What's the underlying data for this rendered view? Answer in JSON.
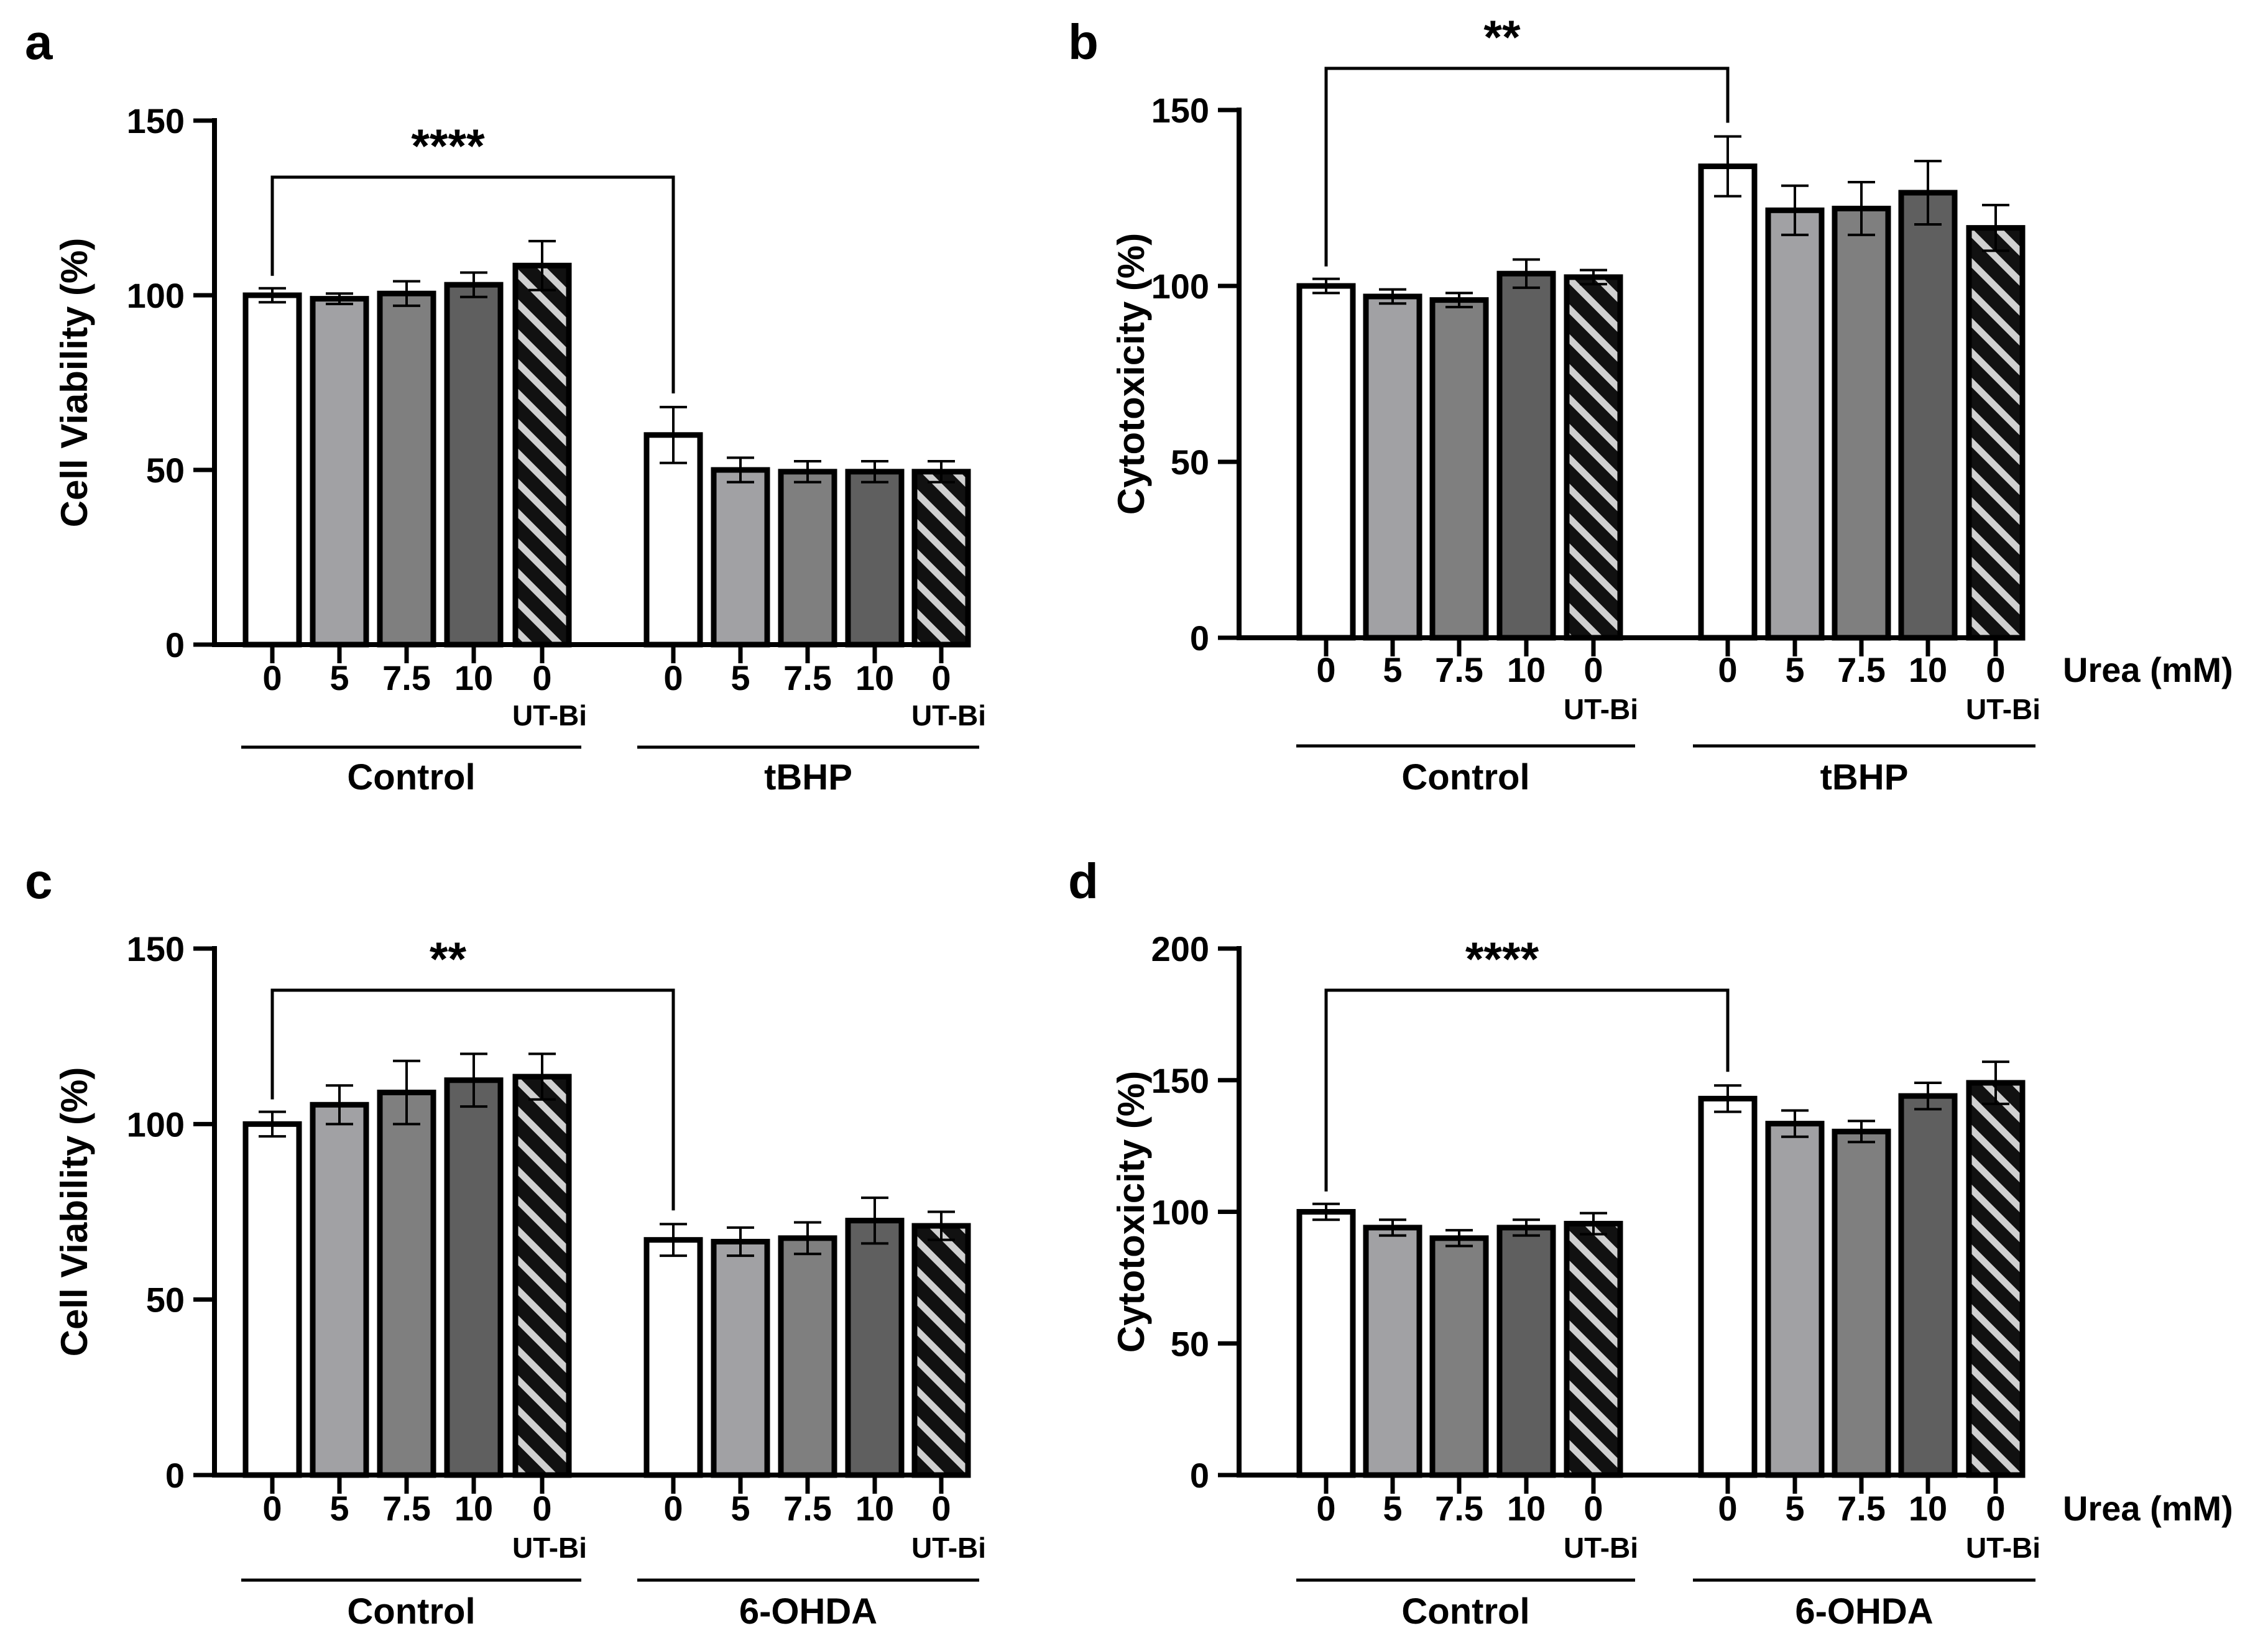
{
  "colors": {
    "ink": "#000000",
    "bar_white": "#ffffff",
    "bar_light": "#a1a1a4",
    "bar_mid": "#7f7f7f",
    "bar_dark": "#5f5f5f",
    "hatch_dark": "#111111",
    "hatch_light": "#d0d0d0"
  },
  "chart_data": [
    {
      "panel_label": "a",
      "type": "bar",
      "ylabel": "Cell Viability (%)",
      "ylim": [
        0,
        150
      ],
      "yticks": [
        "0",
        "50",
        "100",
        "150"
      ],
      "categories": [
        "0",
        "5",
        "7.5",
        "10",
        "0",
        "0",
        "5",
        "7.5",
        "10",
        "0"
      ],
      "sublabels": [
        "",
        "",
        "",
        "",
        "UT-Bi",
        "",
        "",
        "",
        "",
        "UT-Bi"
      ],
      "groups": [
        "Control",
        "tBHP"
      ],
      "unit_label": "",
      "values": [
        100,
        99,
        100.5,
        103,
        108.5,
        60,
        50,
        49.5,
        49.5,
        49.5
      ],
      "errors": [
        2,
        1.5,
        3.5,
        3.5,
        7,
        8,
        3.5,
        3,
        3,
        3
      ],
      "significance": {
        "text": "****",
        "from": 0,
        "to": 5
      }
    },
    {
      "panel_label": "b",
      "type": "bar",
      "ylabel": "Cytotoxicity (%)",
      "ylim": [
        0,
        150
      ],
      "yticks": [
        "0",
        "50",
        "100",
        "150"
      ],
      "categories": [
        "0",
        "5",
        "7.5",
        "10",
        "0",
        "0",
        "5",
        "7.5",
        "10",
        "0"
      ],
      "sublabels": [
        "",
        "",
        "",
        "",
        "UT-Bi",
        "",
        "",
        "",
        "",
        "UT-Bi"
      ],
      "groups": [
        "Control",
        "tBHP"
      ],
      "unit_label": "Urea (mM)",
      "values": [
        100,
        97,
        96,
        103.5,
        102.5,
        134,
        121.5,
        122,
        126.5,
        116.5
      ],
      "errors": [
        2,
        2,
        2,
        4,
        2,
        8.5,
        7,
        7.5,
        9,
        6.5
      ],
      "significance": {
        "text": "**",
        "from": 0,
        "to": 5
      }
    },
    {
      "panel_label": "c",
      "type": "bar",
      "ylabel": "Cell Viability (%)",
      "ylim": [
        0,
        150
      ],
      "yticks": [
        "0",
        "50",
        "100",
        "150"
      ],
      "categories": [
        "0",
        "5",
        "7.5",
        "10",
        "0",
        "0",
        "5",
        "7.5",
        "10",
        "0"
      ],
      "sublabels": [
        "",
        "",
        "",
        "",
        "UT-Bi",
        "",
        "",
        "",
        "",
        "UT-Bi"
      ],
      "groups": [
        "Control",
        "6-OHDA"
      ],
      "unit_label": "",
      "values": [
        100,
        105.5,
        109,
        112.5,
        113.5,
        67,
        66.5,
        67.5,
        72.5,
        71
      ],
      "errors": [
        3.5,
        5.5,
        9,
        7.5,
        6.5,
        4.5,
        4,
        4.5,
        6.5,
        4
      ],
      "significance": {
        "text": "**",
        "from": 0,
        "to": 5
      }
    },
    {
      "panel_label": "d",
      "type": "bar",
      "ylabel": "Cytotoxicity (%)",
      "ylim": [
        0,
        200
      ],
      "yticks": [
        "0",
        "50",
        "100",
        "150",
        "200"
      ],
      "categories": [
        "0",
        "5",
        "7.5",
        "10",
        "0",
        "0",
        "5",
        "7.5",
        "10",
        "0"
      ],
      "sublabels": [
        "",
        "",
        "",
        "",
        "UT-Bi",
        "",
        "",
        "",
        "",
        "UT-Bi"
      ],
      "groups": [
        "Control",
        "6-OHDA"
      ],
      "unit_label": "Urea (mM)",
      "values": [
        100,
        94,
        90,
        94,
        95.5,
        143,
        133.5,
        130.5,
        144,
        149
      ],
      "errors": [
        3,
        3,
        3,
        3,
        4,
        5,
        5,
        4,
        5,
        8
      ],
      "significance": {
        "text": "****",
        "from": 0,
        "to": 5
      }
    }
  ]
}
